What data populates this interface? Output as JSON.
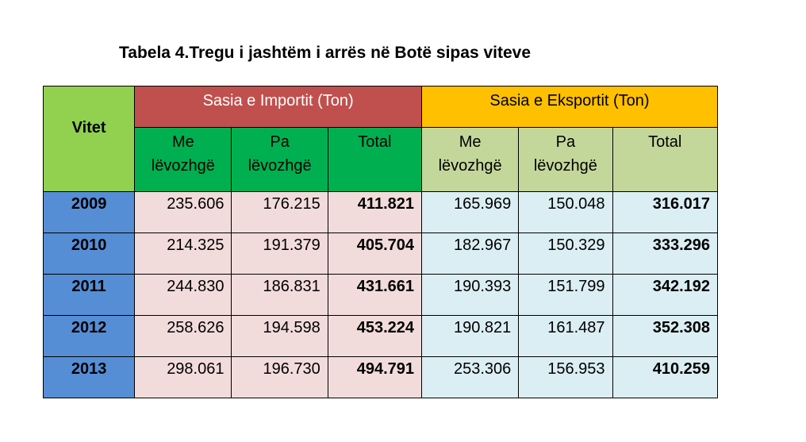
{
  "title": "Tabela 4.Tregu i jashtëm i arrës në Botë sipas viteve",
  "colors": {
    "vitet_header": "#92d050",
    "import_header": "#c0504d",
    "export_header": "#ffc000",
    "import_sub": "#00b050",
    "export_sub": "#c4d79b",
    "year_cell": "#558ed5",
    "import_cell": "#f2dcdb",
    "export_cell": "#dbeef3"
  },
  "table": {
    "vitet_label": "Vitet",
    "import_group": "Sasia e Importit (Ton)",
    "export_group": "Sasia e Eksportit (Ton)",
    "import_sub": [
      {
        "line1": "Me",
        "line2": "lëvozhgë"
      },
      {
        "line1": "Pa",
        "line2": "lëvozhgë"
      },
      {
        "line1": "Total",
        "line2": ""
      }
    ],
    "export_sub": [
      {
        "line1": "Me",
        "line2": "lëvozhgë"
      },
      {
        "line1": "Pa",
        "line2": "lëvozhgë"
      },
      {
        "line1": "Total",
        "line2": ""
      }
    ],
    "rows": [
      {
        "year": "2009",
        "imp_me": "235.606",
        "imp_pa": "176.215",
        "imp_total": "411.821",
        "eks_me": "165.969",
        "eks_pa": "150.048",
        "eks_total": "316.017"
      },
      {
        "year": "2010",
        "imp_me": "214.325",
        "imp_pa": "191.379",
        "imp_total": "405.704",
        "eks_me": "182.967",
        "eks_pa": "150.329",
        "eks_total": "333.296"
      },
      {
        "year": "2011",
        "imp_me": "244.830",
        "imp_pa": "186.831",
        "imp_total": "431.661",
        "eks_me": "190.393",
        "eks_pa": "151.799",
        "eks_total": "342.192"
      },
      {
        "year": "2012",
        "imp_me": "258.626",
        "imp_pa": "194.598",
        "imp_total": "453.224",
        "eks_me": "190.821",
        "eks_pa": "161.487",
        "eks_total": "352.308"
      },
      {
        "year": "2013",
        "imp_me": "298.061",
        "imp_pa": "196.730",
        "imp_total": "494.791",
        "eks_me": "253.306",
        "eks_pa": "156.953",
        "eks_total": "410.259"
      }
    ]
  }
}
